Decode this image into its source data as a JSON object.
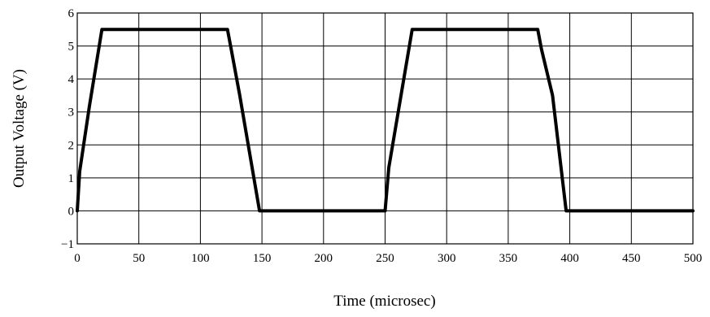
{
  "chart_data": {
    "type": "line",
    "title": "",
    "xlabel": "Time (microsec)",
    "ylabel": "Output Voltage (V)",
    "xlim": [
      0,
      500
    ],
    "ylim": [
      -1,
      6
    ],
    "xticks": [
      0,
      50,
      100,
      150,
      200,
      250,
      300,
      350,
      400,
      450,
      500
    ],
    "yticks": [
      -1,
      0,
      1,
      2,
      3,
      4,
      5,
      6
    ],
    "ytick_labels": [
      "−1",
      "0",
      "1",
      "2",
      "3",
      "4",
      "5",
      "6"
    ],
    "grid": true,
    "series": [
      {
        "color": "#000000",
        "x": [
          0,
          2,
          10,
          20,
          122,
          125,
          132,
          148,
          250,
          253,
          262,
          272,
          374,
          377,
          386,
          397,
          500
        ],
        "y": [
          0,
          1.2,
          3.2,
          5.5,
          5.5,
          4.9,
          3.5,
          0,
          0,
          1.3,
          3.3,
          5.5,
          5.5,
          4.9,
          3.5,
          0,
          0
        ]
      }
    ]
  }
}
